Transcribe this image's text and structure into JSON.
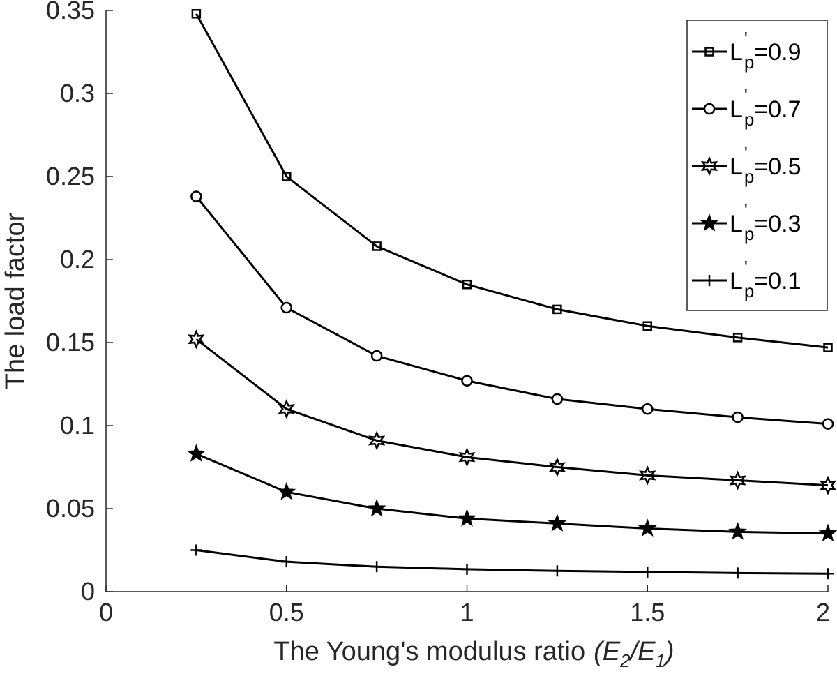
{
  "chart_data": {
    "type": "line",
    "title": "",
    "xlabel": {
      "prefix": "The Young's modulus ratio",
      "expr": "(E2/E1)",
      "expr_parts": {
        "open": "(E",
        "sub1": "2",
        "mid": "/E",
        "sub2": "1",
        "close": ")"
      }
    },
    "ylabel": "The load factor",
    "xlim": [
      0,
      2
    ],
    "ylim": [
      0,
      0.35
    ],
    "xticks": [
      0,
      0.5,
      1,
      1.5,
      2
    ],
    "xtick_labels": [
      "0",
      "0.5",
      "1",
      "1.5",
      "2"
    ],
    "yticks": [
      0,
      0.05,
      0.1,
      0.15,
      0.2,
      0.25,
      0.3,
      0.35
    ],
    "ytick_labels": [
      "0",
      "0.05",
      "0.1",
      "0.15",
      "0.2",
      "0.25",
      "0.3",
      "0.35"
    ],
    "grid": false,
    "legend_position": "top-right",
    "x": [
      0.25,
      0.5,
      0.75,
      1.0,
      1.25,
      1.5,
      1.75,
      2.0
    ],
    "series": [
      {
        "name": "L'p=0.9",
        "label_base": "L",
        "label_sup": "'",
        "label_sub": "p",
        "label_value": "=0.9",
        "marker": "square",
        "values": [
          0.348,
          0.25,
          0.208,
          0.185,
          0.17,
          0.16,
          0.153,
          0.147
        ]
      },
      {
        "name": "L'p=0.7",
        "label_base": "L",
        "label_sup": "'",
        "label_sub": "p",
        "label_value": "=0.7",
        "marker": "circle",
        "values": [
          0.238,
          0.171,
          0.142,
          0.127,
          0.116,
          0.11,
          0.105,
          0.101
        ]
      },
      {
        "name": "L'p=0.5",
        "label_base": "L",
        "label_sup": "'",
        "label_sub": "p",
        "label_value": "=0.5",
        "marker": "hexagram",
        "values": [
          0.152,
          0.11,
          0.091,
          0.081,
          0.075,
          0.07,
          0.067,
          0.064
        ]
      },
      {
        "name": "L'p=0.3",
        "label_base": "L",
        "label_sup": "'",
        "label_sub": "p",
        "label_value": "=0.3",
        "marker": "pentagram",
        "values": [
          0.083,
          0.06,
          0.05,
          0.044,
          0.041,
          0.038,
          0.036,
          0.035
        ]
      },
      {
        "name": "L'p=0.1",
        "label_base": "L",
        "label_sup": "'",
        "label_sub": "p",
        "label_value": "=0.1",
        "marker": "plus",
        "values": [
          0.025,
          0.018,
          0.015,
          0.0135,
          0.0125,
          0.0118,
          0.0112,
          0.0108
        ]
      }
    ]
  },
  "colors": {
    "line": "#000000",
    "axis": "#262626",
    "background": "#ffffff"
  }
}
